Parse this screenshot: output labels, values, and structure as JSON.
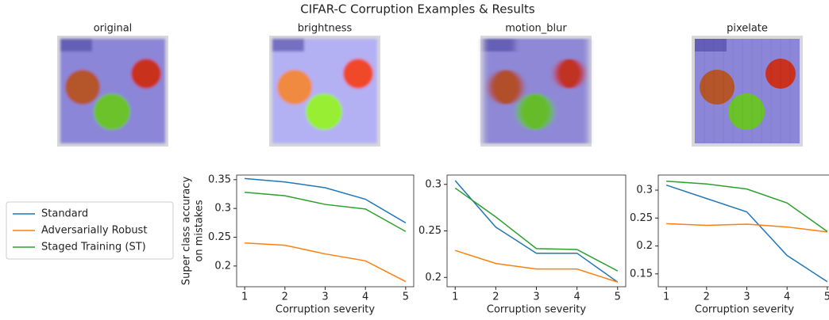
{
  "title": "CIFAR-C Corruption Examples & Results",
  "images": [
    {
      "title": "original"
    },
    {
      "title": "brightness"
    },
    {
      "title": "motion_blur"
    },
    {
      "title": "pixelate"
    }
  ],
  "chart_data": [
    {
      "type": "line",
      "x": [
        1,
        2,
        3,
        4,
        5
      ],
      "xlim": [
        0.8,
        5.2
      ],
      "xticks": [
        1,
        2,
        3,
        4,
        5
      ],
      "xlabel": "Corruption severity",
      "ylabel": [
        "Super class accuracy",
        "on mistakes"
      ],
      "ylim": [
        0.164,
        0.358
      ],
      "yticks": [
        0.2,
        0.25,
        0.3,
        0.35
      ],
      "yticklabels_note": null,
      "series": [
        {
          "name": "Standard",
          "color": "#1f77b4",
          "values": [
            0.352,
            0.346,
            0.336,
            0.316,
            0.275
          ]
        },
        {
          "name": "Adversarially Robust",
          "color": "#ff7f0e",
          "values": [
            0.24,
            0.236,
            0.221,
            0.209,
            0.173
          ]
        },
        {
          "name": "Staged Training (ST)",
          "color": "#2ca02c",
          "values": [
            0.328,
            0.322,
            0.307,
            0.299,
            0.26
          ]
        }
      ]
    },
    {
      "type": "line",
      "x": [
        1,
        2,
        3,
        4,
        5
      ],
      "xlim": [
        0.8,
        5.2
      ],
      "xticks": [
        1,
        2,
        3,
        4,
        5
      ],
      "xlabel": "Corruption severity",
      "ylim": [
        0.19,
        0.31
      ],
      "yticks": [
        0.2,
        0.25,
        0.3
      ],
      "series": [
        {
          "color": "#1f77b4",
          "values": [
            0.304,
            0.254,
            0.226,
            0.226,
            0.195
          ]
        },
        {
          "color": "#ff7f0e",
          "values": [
            0.229,
            0.215,
            0.209,
            0.209,
            0.195
          ]
        },
        {
          "color": "#2ca02c",
          "values": [
            0.296,
            0.265,
            0.231,
            0.23,
            0.207
          ]
        }
      ]
    },
    {
      "type": "line",
      "x": [
        1,
        2,
        3,
        4,
        5
      ],
      "xlim": [
        0.8,
        5.2
      ],
      "xticks": [
        1,
        2,
        3,
        4,
        5
      ],
      "xlabel": "Corruption severity",
      "ylim": [
        0.127,
        0.327
      ],
      "yticks": [
        0.15,
        0.2,
        0.25,
        0.3
      ],
      "series": [
        {
          "color": "#1f77b4",
          "values": [
            0.309,
            0.285,
            0.261,
            0.183,
            0.136
          ]
        },
        {
          "color": "#ff7f0e",
          "values": [
            0.24,
            0.237,
            0.239,
            0.234,
            0.225
          ]
        },
        {
          "color": "#2ca02c",
          "values": [
            0.316,
            0.311,
            0.302,
            0.277,
            0.226
          ]
        }
      ]
    }
  ]
}
